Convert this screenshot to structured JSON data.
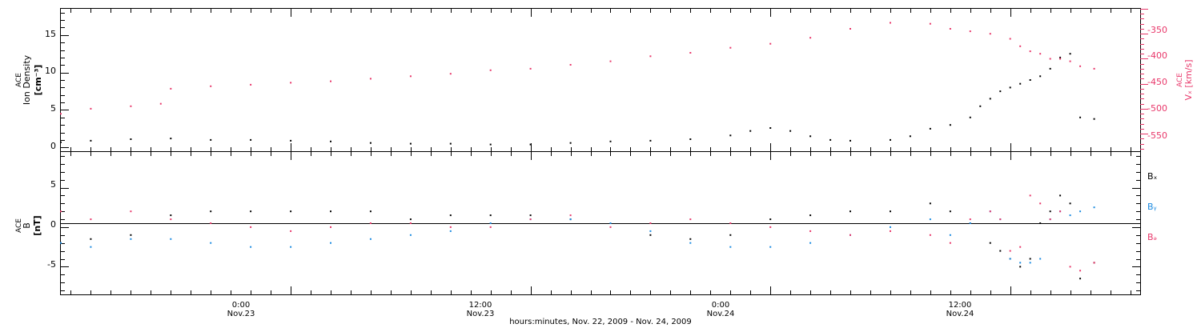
{
  "colors": {
    "density": "#000000",
    "vx": "#e8376a",
    "bx": "#000000",
    "by": "#1a8ae0",
    "bz": "#e8376a",
    "frame": "#000000"
  },
  "x_axis": {
    "label": "hours:minutes, Nov. 22, 2009 - Nov. 24, 2009",
    "range_hours": [
      12.5,
      66.5
    ],
    "ticks": [
      {
        "hour": 24,
        "time": "0:00",
        "date": "Nov.23"
      },
      {
        "hour": 36,
        "time": "12:00",
        "date": "Nov.23"
      },
      {
        "hour": 48,
        "time": "0:00",
        "date": "Nov.24"
      },
      {
        "hour": 60,
        "time": "12:00",
        "date": "Nov.24"
      }
    ]
  },
  "panel1": {
    "ylabel_lines": [
      "ACE",
      "Ion Density",
      "[cm⁻³]"
    ],
    "y2label_lines": [
      "ACE",
      "Vₓ [km/s]"
    ],
    "left_ticks": [
      "0",
      "5",
      "10",
      "15"
    ],
    "right_ticks": [
      "-350",
      "-400",
      "-450",
      "-500",
      "-550"
    ]
  },
  "panel2": {
    "ylabel_lines": [
      "ACE",
      "B",
      "[nT]"
    ],
    "ticks": [
      "5",
      "0",
      "-5"
    ],
    "legend": [
      {
        "text": "Bₓ",
        "color": "#000000"
      },
      {
        "text": "Bᵧ",
        "color": "#1a8ae0"
      },
      {
        "text": "Bₔ",
        "color": "#e8376a"
      }
    ]
  },
  "chart_data": [
    {
      "type": "scatter",
      "x_unit": "hours since Nov. 22, 2009 00:00",
      "ylim": [
        -0.5,
        18.5
      ],
      "y2lim": [
        -585,
        -300
      ],
      "series": [
        {
          "name": "Ion Density",
          "axis": "left",
          "x": [
            12.5,
            14,
            16,
            18,
            20,
            22,
            24,
            26,
            28,
            30,
            32,
            34,
            36,
            38,
            40,
            42,
            44,
            46,
            47,
            48,
            49,
            50,
            51,
            52,
            54,
            55,
            56,
            57,
            58,
            58.5,
            59,
            59.5,
            60,
            60.5,
            61,
            61.5,
            62,
            62.5,
            63,
            63.5,
            64.2
          ],
          "y": [
            0.7,
            0.9,
            1.1,
            1.2,
            1.0,
            1.0,
            0.9,
            0.8,
            0.6,
            0.5,
            0.5,
            0.4,
            0.4,
            0.6,
            0.8,
            0.9,
            1.1,
            1.6,
            2.2,
            2.6,
            2.2,
            1.5,
            1.0,
            0.9,
            1.0,
            1.5,
            2.5,
            3.0,
            4.0,
            5.5,
            6.5,
            7.5,
            8.0,
            8.5,
            9.0,
            9.5,
            10.5,
            12.0,
            12.5,
            4.0,
            3.8
          ]
        },
        {
          "name": "Vx",
          "axis": "right",
          "x": [
            12.5,
            14,
            16,
            17.5,
            18,
            20,
            22,
            24,
            26,
            28,
            30,
            32,
            34,
            36,
            38,
            40,
            42,
            44,
            46,
            48,
            50,
            52,
            54,
            56,
            57,
            58,
            59,
            60,
            60.5,
            61,
            61.5,
            62,
            62.5,
            63,
            63.5,
            64.2
          ],
          "y": [
            -510,
            -500,
            -495,
            -490,
            -460,
            -455,
            -452,
            -448,
            -445,
            -440,
            -435,
            -430,
            -423,
            -420,
            -412,
            -405,
            -395,
            -388,
            -378,
            -370,
            -358,
            -340,
            -328,
            -330,
            -340,
            -345,
            -350,
            -360,
            -375,
            -385,
            -390,
            -400,
            -400,
            -405,
            -415,
            -420
          ]
        }
      ]
    },
    {
      "type": "scatter",
      "x_unit": "hours since Nov. 22, 2009 00:00",
      "ylim": [
        -8.5,
        9.5
      ],
      "series": [
        {
          "name": "Bx",
          "x": [
            12.5,
            14,
            16,
            18,
            20,
            22,
            24,
            26,
            28,
            30,
            32,
            34,
            36,
            38,
            40,
            42,
            44,
            46,
            48,
            50,
            52,
            54,
            56,
            57,
            58,
            59,
            59.5,
            60,
            60.5,
            61,
            61.5,
            62,
            62.5,
            63,
            63.5,
            64.2
          ],
          "y": [
            -2.0,
            -1.5,
            -1.0,
            1.5,
            2.0,
            2.0,
            2.0,
            2.0,
            2.0,
            1.0,
            1.5,
            1.5,
            1.5,
            1.0,
            0.5,
            -1.0,
            -1.5,
            -1.0,
            1.0,
            1.5,
            2.0,
            2.0,
            3.0,
            2.0,
            0.5,
            -2.0,
            -3.0,
            -4.0,
            -5.0,
            -4.0,
            0.5,
            2.0,
            4.0,
            3.0,
            -6.5,
            -4.5
          ]
        },
        {
          "name": "By",
          "x": [
            12.5,
            14,
            16,
            18,
            20,
            22,
            24,
            26,
            28,
            30,
            32,
            34,
            36,
            38,
            40,
            42,
            44,
            46,
            48,
            50,
            52,
            54,
            56,
            57,
            58,
            59,
            59.5,
            60,
            60.5,
            61,
            61.5,
            62,
            62.5,
            63,
            63.5,
            64.2
          ],
          "y": [
            -2.0,
            -2.5,
            -1.5,
            -1.5,
            -2.0,
            -2.5,
            -2.5,
            -2.0,
            -1.5,
            -1.0,
            -0.5,
            0.5,
            1.0,
            1.0,
            0.5,
            -0.5,
            -2.0,
            -2.5,
            -2.5,
            -2.0,
            -1.0,
            0.0,
            1.0,
            -1.0,
            0.5,
            2.0,
            1.0,
            -4.0,
            -4.5,
            -4.5,
            -4.0,
            1.0,
            2.0,
            1.5,
            2.0,
            2.5
          ]
        },
        {
          "name": "Bz",
          "x": [
            12.5,
            14,
            16,
            18,
            20,
            22,
            24,
            26,
            28,
            30,
            32,
            34,
            36,
            38,
            40,
            42,
            44,
            46,
            48,
            50,
            52,
            54,
            56,
            57,
            58,
            59,
            59.5,
            60,
            60.5,
            61,
            61.5,
            62,
            62.5,
            63,
            63.5,
            64.2
          ],
          "y": [
            2.0,
            1.0,
            2.0,
            1.0,
            0.5,
            0.0,
            -0.5,
            0.0,
            0.5,
            0.5,
            0.0,
            0.0,
            1.0,
            1.5,
            0.0,
            0.5,
            1.0,
            0.5,
            0.0,
            -0.5,
            -1.0,
            -0.5,
            -1.0,
            -2.0,
            1.0,
            2.0,
            1.0,
            -3.0,
            -2.5,
            4.0,
            3.0,
            1.0,
            2.0,
            -5.0,
            -5.5,
            -4.5
          ]
        }
      ]
    }
  ]
}
